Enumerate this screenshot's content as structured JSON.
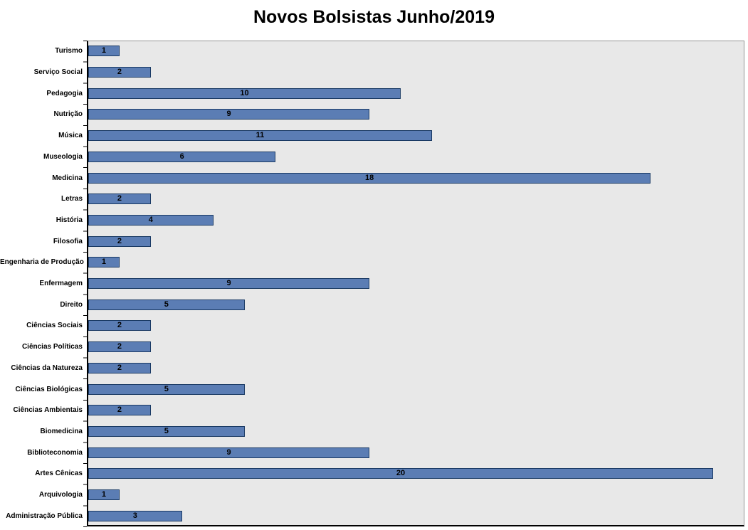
{
  "chart_data": {
    "type": "bar",
    "orientation": "horizontal",
    "title": "Novos Bolsistas Junho/2019",
    "categories": [
      "Turismo",
      "Serviço Social",
      "Pedagogia",
      "Nutrição",
      "Música",
      "Museologia",
      "Medicina",
      "Letras",
      "História",
      "Filosofia",
      "Engenharia de Produção",
      "Enfermagem",
      "Direito",
      "Ciências Sociais",
      "Ciências Políticas",
      "Ciências da Natureza",
      "Ciências Biológicas",
      "Ciências Ambientais",
      "Biomedicina",
      "Biblioteconomia",
      "Artes Cênicas",
      "Arquivologia",
      "Administração Pública"
    ],
    "values": [
      1,
      2,
      10,
      9,
      11,
      6,
      18,
      2,
      4,
      2,
      1,
      9,
      5,
      2,
      2,
      2,
      5,
      2,
      5,
      9,
      20,
      1,
      3
    ],
    "xlim": [
      0,
      21
    ],
    "data_labels": true,
    "grid": false,
    "legend": false,
    "colors": {
      "bar_fill": "#5b7db4",
      "bar_border": "#1a3a64",
      "plot_bg": "#e8e8e8",
      "axis": "#000000",
      "title_text": "#000000"
    }
  }
}
